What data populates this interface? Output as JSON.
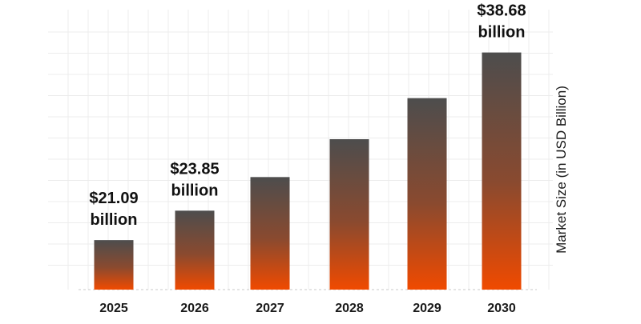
{
  "chart_data": {
    "type": "bar",
    "categories": [
      "2025",
      "2026",
      "2027",
      "2028",
      "2029",
      "2030"
    ],
    "values": [
      21.09,
      23.85,
      27.0,
      30.55,
      34.4,
      38.68
    ],
    "ylabel": "Market Size (in USD Billion)",
    "xlabel": "",
    "title": "",
    "ylim": [
      16.45,
      42.7
    ],
    "grid": true,
    "data_labels": [
      {
        "index": 0,
        "line1": "$21.09",
        "line2": "billion"
      },
      {
        "index": 1,
        "line1": "$23.85",
        "line2": "billion"
      },
      {
        "index": 5,
        "line1": "$38.68",
        "line2": "billion"
      }
    ],
    "colors": {
      "bar_top": "#4d4d4d",
      "bar_mid": "#8a4a2f",
      "bar_bottom": "#f04a00",
      "grid": "#ececec",
      "baseline": "#c8c8c8",
      "text": "#111111"
    }
  }
}
